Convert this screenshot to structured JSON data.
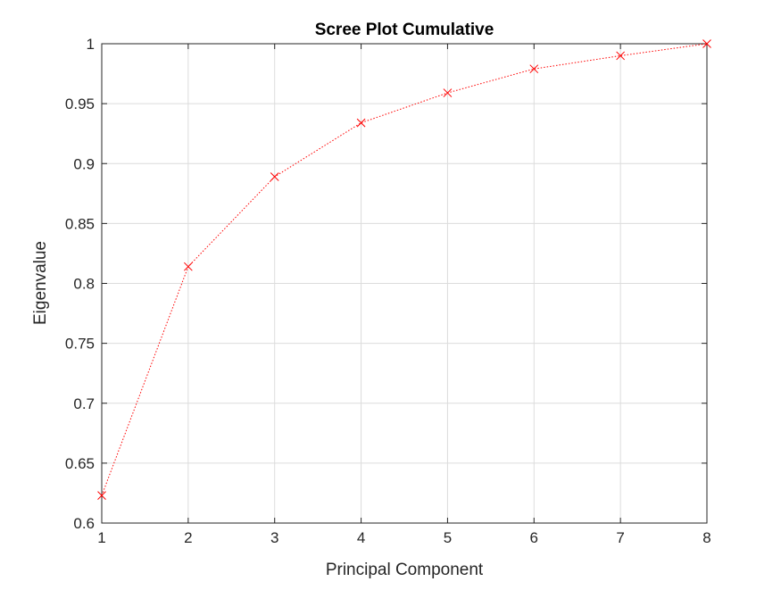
{
  "chart_data": {
    "type": "line",
    "title": "Scree Plot Cumulative",
    "xlabel": "Principal Component",
    "ylabel": "Eigenvalue",
    "xlim": [
      1,
      8
    ],
    "ylim": [
      0.6,
      1
    ],
    "grid": true,
    "x": [
      1,
      2,
      3,
      4,
      5,
      6,
      7,
      8
    ],
    "xticks": [
      "1",
      "2",
      "3",
      "4",
      "5",
      "6",
      "7",
      "8"
    ],
    "yticks": [
      "0.6",
      "0.65",
      "0.7",
      "0.75",
      "0.8",
      "0.85",
      "0.9",
      "0.95",
      "1"
    ],
    "series": [
      {
        "values": [
          0.623,
          0.814,
          0.889,
          0.934,
          0.959,
          0.979,
          0.99,
          1.0
        ],
        "color": "#ff0000",
        "marker": "x",
        "line_style": "dotted"
      }
    ]
  }
}
